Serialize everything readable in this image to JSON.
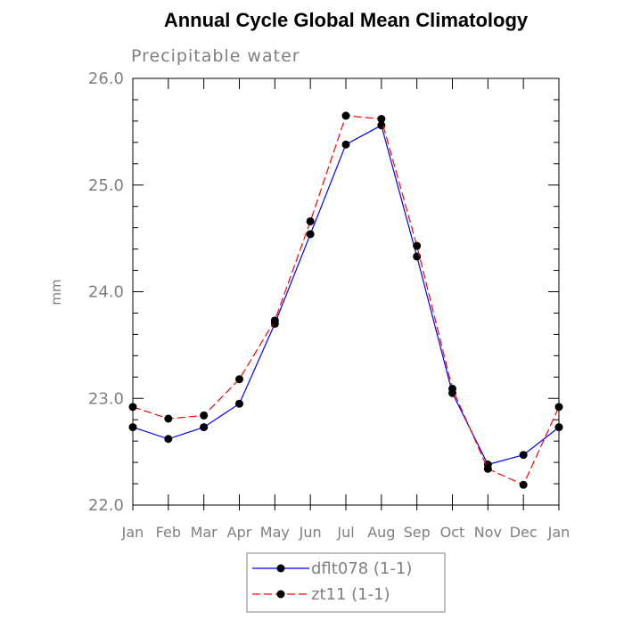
{
  "chart_data": {
    "type": "line",
    "title": "Annual Cycle Global Mean Climatology",
    "subtitle": "Precipitable water",
    "xlabel": "",
    "ylabel": "mm",
    "categories": [
      "Jan",
      "Feb",
      "Mar",
      "Apr",
      "May",
      "Jun",
      "Jul",
      "Aug",
      "Sep",
      "Oct",
      "Nov",
      "Dec",
      "Jan"
    ],
    "ylim": [
      22.0,
      26.0
    ],
    "yticks": [
      "22.0",
      "23.0",
      "24.0",
      "25.0",
      "26.0"
    ],
    "grid": false,
    "legend_position": "bottom-center",
    "series": [
      {
        "name": "dflt078 (1-1)",
        "color": "#0000ff",
        "line_style": "solid",
        "marker": "filled-circle",
        "values": [
          22.73,
          22.62,
          22.73,
          22.95,
          23.7,
          24.54,
          25.38,
          25.56,
          24.33,
          23.05,
          22.38,
          22.47,
          22.73
        ]
      },
      {
        "name": "zt11 (1-1)",
        "color": "#ff0000",
        "line_style": "dashed",
        "marker": "filled-circle",
        "values": [
          22.92,
          22.81,
          22.84,
          23.18,
          23.73,
          24.66,
          25.65,
          25.62,
          24.43,
          23.09,
          22.34,
          22.19,
          22.92
        ]
      }
    ]
  }
}
